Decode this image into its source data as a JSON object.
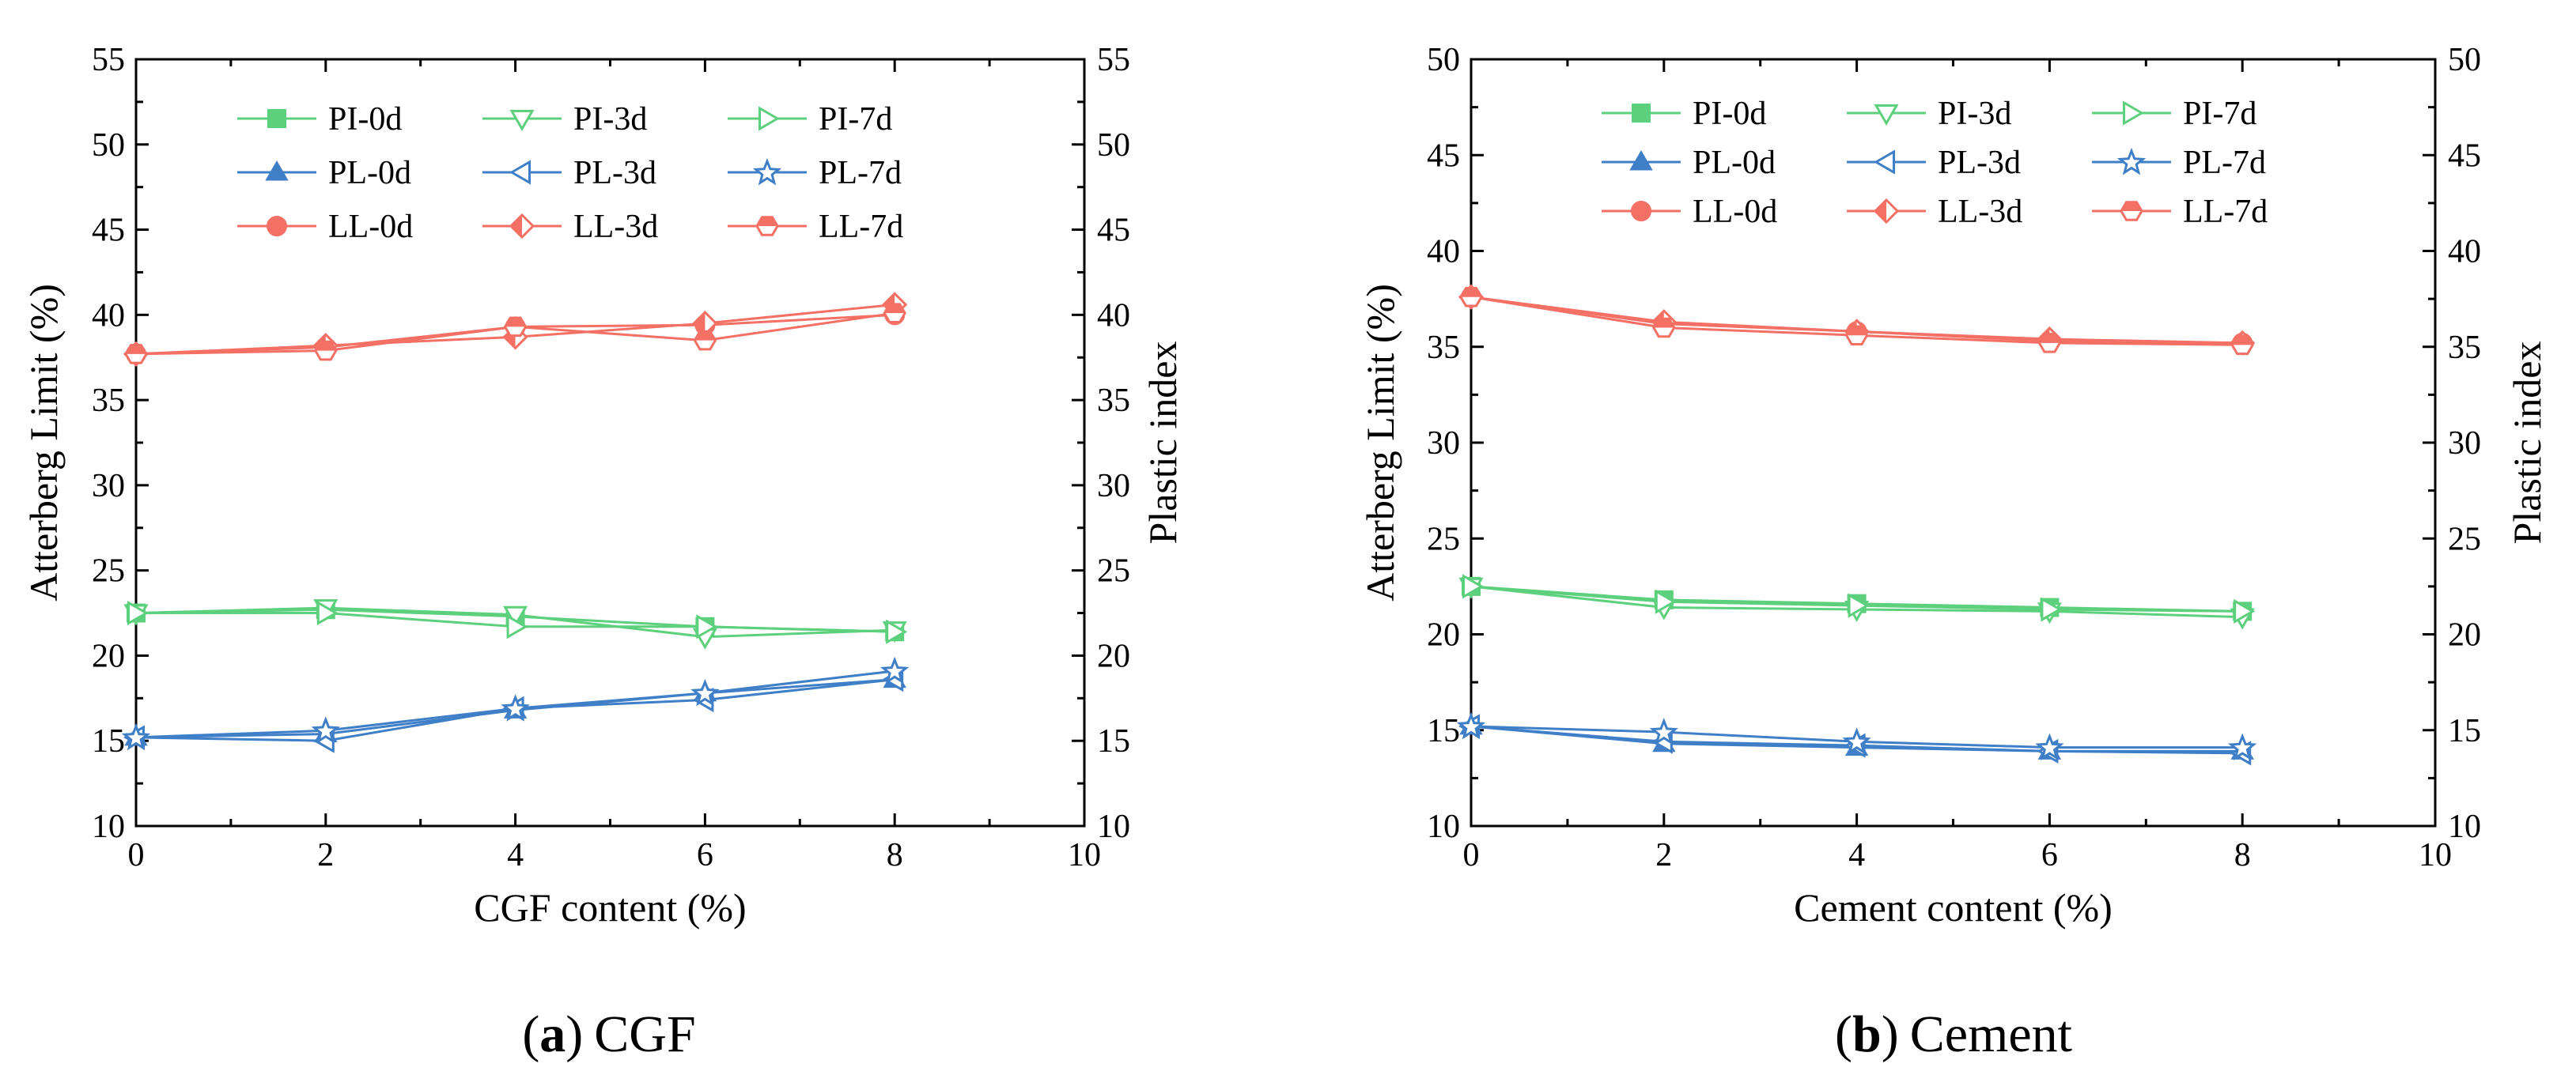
{
  "colors": {
    "PI": "#5dd07d",
    "PL": "#3f7fc8",
    "LL": "#f46f64",
    "axis": "#000000"
  },
  "chart_data": [
    {
      "type": "line",
      "panel": "a",
      "caption": {
        "label": "a",
        "open": "(",
        "close": ")",
        "title": "CGF"
      },
      "xlabel": "CGF content (%)",
      "ylabel": "Atterberg Limit (%)",
      "y2label": "Plastic index",
      "xlim": [
        0,
        10
      ],
      "ylim": [
        10,
        55
      ],
      "y2lim": [
        10,
        55
      ],
      "xticks": [
        "0",
        "2",
        "4",
        "6",
        "8",
        "10"
      ],
      "yticks": [
        "10",
        "15",
        "20",
        "25",
        "30",
        "35",
        "40",
        "45",
        "50",
        "55"
      ],
      "legend": {
        "position": "top-left",
        "columns": 3
      },
      "series": [
        {
          "name": "PI-0d",
          "group": "PI",
          "marker": "square-filled",
          "x": [
            0,
            2,
            4,
            6,
            8
          ],
          "y": [
            22.5,
            22.7,
            22.3,
            21.7,
            21.4
          ]
        },
        {
          "name": "PI-3d",
          "group": "PI",
          "marker": "triangle-down-open",
          "x": [
            0,
            2,
            4,
            6,
            8
          ],
          "y": [
            22.5,
            22.8,
            22.4,
            21.1,
            21.5
          ]
        },
        {
          "name": "PI-7d",
          "group": "PI",
          "marker": "triangle-right-open",
          "x": [
            0,
            2,
            4,
            6,
            8
          ],
          "y": [
            22.5,
            22.5,
            21.7,
            21.7,
            21.4
          ]
        },
        {
          "name": "PL-0d",
          "group": "PL",
          "marker": "triangle-up-filled",
          "x": [
            0,
            2,
            4,
            6,
            8
          ],
          "y": [
            15.2,
            15.4,
            16.8,
            17.8,
            18.6
          ]
        },
        {
          "name": "PL-3d",
          "group": "PL",
          "marker": "triangle-left-open",
          "x": [
            0,
            2,
            4,
            6,
            8
          ],
          "y": [
            15.2,
            15.0,
            16.9,
            17.4,
            18.6
          ]
        },
        {
          "name": "PL-7d",
          "group": "PL",
          "marker": "star-open",
          "x": [
            0,
            2,
            4,
            6,
            8
          ],
          "y": [
            15.2,
            15.6,
            16.9,
            17.8,
            19.1
          ]
        },
        {
          "name": "LL-0d",
          "group": "LL",
          "marker": "circle-filled",
          "x": [
            0,
            2,
            4,
            6,
            8
          ],
          "y": [
            37.7,
            38.1,
            39.3,
            39.4,
            40.0
          ]
        },
        {
          "name": "LL-3d",
          "group": "LL",
          "marker": "diamond-half",
          "x": [
            0,
            2,
            4,
            6,
            8
          ],
          "y": [
            37.7,
            38.2,
            38.7,
            39.5,
            40.6
          ]
        },
        {
          "name": "LL-7d",
          "group": "LL",
          "marker": "hexagon-half",
          "x": [
            0,
            2,
            4,
            6,
            8
          ],
          "y": [
            37.7,
            37.9,
            39.3,
            38.5,
            40.1
          ]
        }
      ]
    },
    {
      "type": "line",
      "panel": "b",
      "caption": {
        "label": "b",
        "open": "(",
        "close": ")",
        "title": "Cement"
      },
      "xlabel": "Cement content (%)",
      "ylabel": "Atterberg Limit (%)",
      "y2label": "Plastic index",
      "xlim": [
        0,
        10
      ],
      "ylim": [
        10,
        50
      ],
      "y2lim": [
        10,
        50
      ],
      "xticks": [
        "0",
        "2",
        "4",
        "6",
        "8",
        "10"
      ],
      "yticks": [
        "10",
        "15",
        "20",
        "25",
        "30",
        "35",
        "40",
        "45",
        "50"
      ],
      "legend": {
        "position": "top-left",
        "columns": 3
      },
      "series": [
        {
          "name": "PI-0d",
          "group": "PI",
          "marker": "square-filled",
          "x": [
            0,
            2,
            4,
            6,
            8
          ],
          "y": [
            22.5,
            21.8,
            21.6,
            21.4,
            21.2
          ]
        },
        {
          "name": "PI-3d",
          "group": "PI",
          "marker": "triangle-down-open",
          "x": [
            0,
            2,
            4,
            6,
            8
          ],
          "y": [
            22.5,
            21.4,
            21.3,
            21.2,
            20.9
          ]
        },
        {
          "name": "PI-7d",
          "group": "PI",
          "marker": "triangle-right-open",
          "x": [
            0,
            2,
            4,
            6,
            8
          ],
          "y": [
            22.5,
            21.7,
            21.5,
            21.3,
            21.2
          ]
        },
        {
          "name": "PL-0d",
          "group": "PL",
          "marker": "triangle-up-filled",
          "x": [
            0,
            2,
            4,
            6,
            8
          ],
          "y": [
            15.2,
            14.3,
            14.1,
            13.9,
            13.9
          ]
        },
        {
          "name": "PL-3d",
          "group": "PL",
          "marker": "triangle-left-open",
          "x": [
            0,
            2,
            4,
            6,
            8
          ],
          "y": [
            15.2,
            14.4,
            14.2,
            13.9,
            13.8
          ]
        },
        {
          "name": "PL-7d",
          "group": "PL",
          "marker": "star-open",
          "x": [
            0,
            2,
            4,
            6,
            8
          ],
          "y": [
            15.2,
            14.9,
            14.4,
            14.1,
            14.1
          ]
        },
        {
          "name": "LL-0d",
          "group": "LL",
          "marker": "circle-filled",
          "x": [
            0,
            2,
            4,
            6,
            8
          ],
          "y": [
            37.6,
            36.2,
            35.8,
            35.3,
            35.2
          ]
        },
        {
          "name": "LL-3d",
          "group": "LL",
          "marker": "diamond-half",
          "x": [
            0,
            2,
            4,
            6,
            8
          ],
          "y": [
            37.6,
            36.3,
            35.8,
            35.4,
            35.2
          ]
        },
        {
          "name": "LL-7d",
          "group": "LL",
          "marker": "hexagon-half",
          "x": [
            0,
            2,
            4,
            6,
            8
          ],
          "y": [
            37.6,
            36.0,
            35.6,
            35.2,
            35.1
          ]
        }
      ]
    }
  ]
}
